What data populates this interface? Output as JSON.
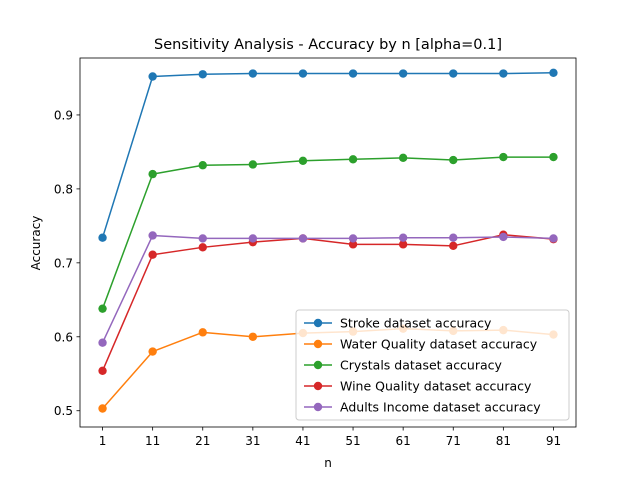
{
  "chart_data": {
    "type": "line",
    "title": "Sensitivity Analysis - Accuracy by n [alpha=0.1]",
    "xlabel": "n",
    "ylabel": "Accuracy",
    "x": [
      1,
      11,
      21,
      31,
      41,
      51,
      61,
      71,
      81,
      91
    ],
    "xticks": [
      "1",
      "11",
      "21",
      "31",
      "41",
      "51",
      "61",
      "71",
      "81",
      "91"
    ],
    "yticks": [
      0.5,
      0.6,
      0.7,
      0.8,
      0.9
    ],
    "ytick_labels": [
      "0.5",
      "0.6",
      "0.7",
      "0.8",
      "0.9"
    ],
    "ylim": [
      0.478,
      0.977
    ],
    "xlim": [
      -3.5,
      95.5
    ],
    "grid": false,
    "legend_position": "lower-right",
    "series": [
      {
        "name": "Stroke dataset accuracy",
        "color": "#1f77b4",
        "values": [
          0.734,
          0.952,
          0.955,
          0.956,
          0.956,
          0.956,
          0.956,
          0.956,
          0.956,
          0.957
        ]
      },
      {
        "name": "Water Quality dataset accuracy",
        "color": "#ff7f0e",
        "values": [
          0.503,
          0.58,
          0.606,
          0.6,
          0.605,
          0.607,
          0.611,
          0.608,
          0.609,
          0.603
        ]
      },
      {
        "name": "Crystals dataset accuracy",
        "color": "#2ca02c",
        "values": [
          0.638,
          0.82,
          0.832,
          0.833,
          0.838,
          0.84,
          0.842,
          0.839,
          0.843,
          0.843
        ]
      },
      {
        "name": "Wine Quality dataset accuracy",
        "color": "#d62728",
        "values": [
          0.554,
          0.711,
          0.721,
          0.728,
          0.733,
          0.725,
          0.725,
          0.723,
          0.738,
          0.732
        ]
      },
      {
        "name": "Adults Income dataset accuracy",
        "color": "#9467bd",
        "values": [
          0.592,
          0.737,
          0.733,
          0.733,
          0.733,
          0.733,
          0.734,
          0.734,
          0.735,
          0.733
        ]
      }
    ]
  }
}
